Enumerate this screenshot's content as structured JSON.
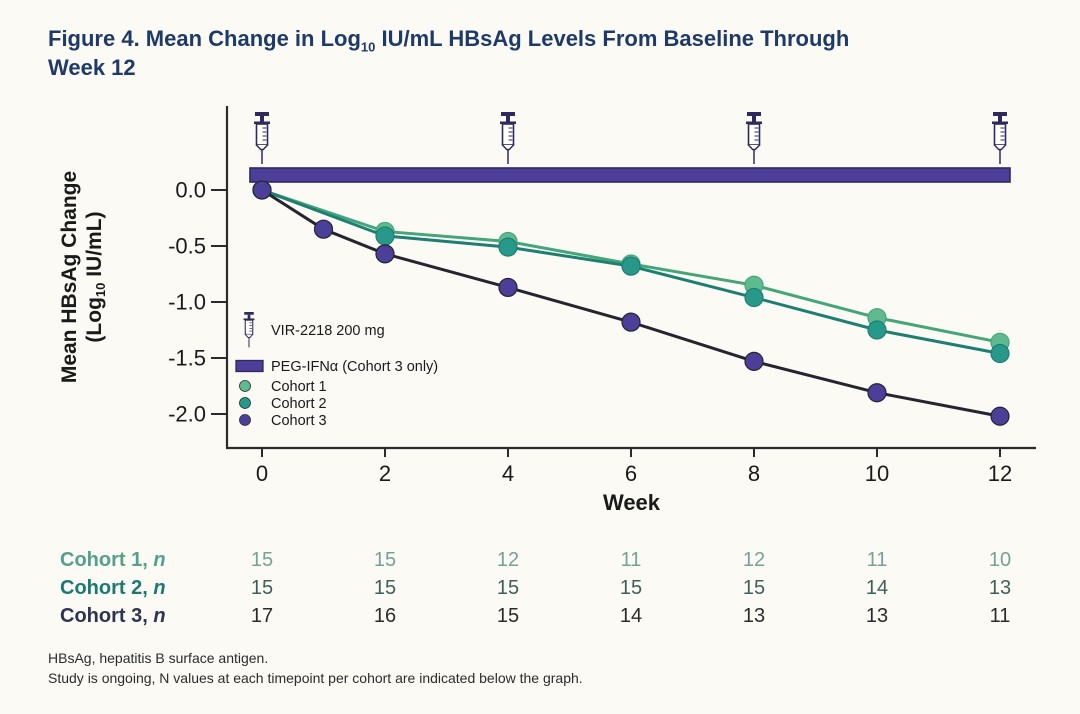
{
  "title": {
    "part1": "Figure 4. Mean Change in Log",
    "sub": "10",
    "part2": " IU/mL HBsAg Levels From Baseline Through",
    "line2": "Week 12"
  },
  "chart_data": {
    "type": "line",
    "xlabel": "Week",
    "ylabel_line1": "Mean HBsAg Change",
    "ylabel_line2_pre": "(Log",
    "ylabel_sub": "10",
    "ylabel_line2_post": " IU/mL)",
    "x_ticks": [
      0,
      2,
      4,
      6,
      8,
      10,
      12
    ],
    "y_ticks": [
      0.0,
      -0.5,
      -1.0,
      -1.5,
      -2.0
    ],
    "y_tick_labels": [
      "0.0",
      "-0.5",
      "-1.0",
      "-1.5",
      "-2.0"
    ],
    "xlim": [
      0,
      12
    ],
    "ylim": [
      -2.3,
      0.4
    ],
    "grid": false,
    "series": [
      {
        "name": "Cohort 1",
        "color": "#5fba8f",
        "line_color": "#43a578",
        "x": [
          0,
          2,
          4,
          6,
          8,
          10,
          12
        ],
        "values": [
          0,
          -0.37,
          -0.46,
          -0.66,
          -0.85,
          -1.14,
          -1.36
        ]
      },
      {
        "name": "Cohort 2",
        "color": "#28988b",
        "line_color": "#1d7f73",
        "x": [
          0,
          2,
          4,
          6,
          8,
          10,
          12
        ],
        "values": [
          0,
          -0.41,
          -0.51,
          -0.68,
          -0.96,
          -1.25,
          -1.46
        ]
      },
      {
        "name": "Cohort 3",
        "color": "#4b3f9a",
        "line_color": "#26242f",
        "x": [
          0,
          1,
          2,
          4,
          6,
          8,
          10,
          12
        ],
        "values": [
          0,
          -0.35,
          -0.57,
          -0.87,
          -1.18,
          -1.53,
          -1.81,
          -2.02
        ]
      }
    ],
    "treatment_bar": {
      "label": "PEG-IFNα (Cohort 3 only)",
      "color": "#4c3e99",
      "border": "#2e2a5e",
      "from_week": 0,
      "to_week": 12
    },
    "syringe_weeks": [
      0,
      4,
      8,
      12
    ],
    "syringe_label": "VIR-2218 200 mg"
  },
  "legend": {
    "items": [
      {
        "type": "syringe",
        "label": "VIR-2218 200 mg"
      },
      {
        "type": "bar",
        "label": "PEG-IFNα (Cohort 3 only)",
        "color": "#4c3e99",
        "border": "#2e2a5e"
      },
      {
        "type": "dot",
        "label": "Cohort 1",
        "color": "#5fba8f"
      },
      {
        "type": "dot",
        "label": "Cohort 2",
        "color": "#28988b"
      },
      {
        "type": "dot",
        "label": "Cohort 3",
        "color": "#4b3f9a"
      }
    ]
  },
  "table": {
    "week_columns": [
      0,
      2,
      4,
      6,
      8,
      10,
      12
    ],
    "rows": [
      {
        "label": "Cohort 1,",
        "n": "n",
        "label_color": "#53a08b",
        "value_color": "#74a396",
        "values": [
          "15",
          "15",
          "12",
          "11",
          "12",
          "11",
          "10"
        ]
      },
      {
        "label": "Cohort 2,",
        "n": "n",
        "label_color": "#1b7a70",
        "value_color": "#3f5f5a",
        "values": [
          "15",
          "15",
          "15",
          "15",
          "15",
          "14",
          "13"
        ]
      },
      {
        "label": "Cohort 3,",
        "n": "n",
        "label_color": "#2e3350",
        "value_color": "#2b2b2b",
        "values": [
          "17",
          "16",
          "15",
          "14",
          "13",
          "13",
          "11"
        ]
      }
    ]
  },
  "footnotes": [
    "HBsAg, hepatitis B surface antigen.",
    "Study is ongoing, N values at each timepoint per cohort are indicated below the graph."
  ]
}
